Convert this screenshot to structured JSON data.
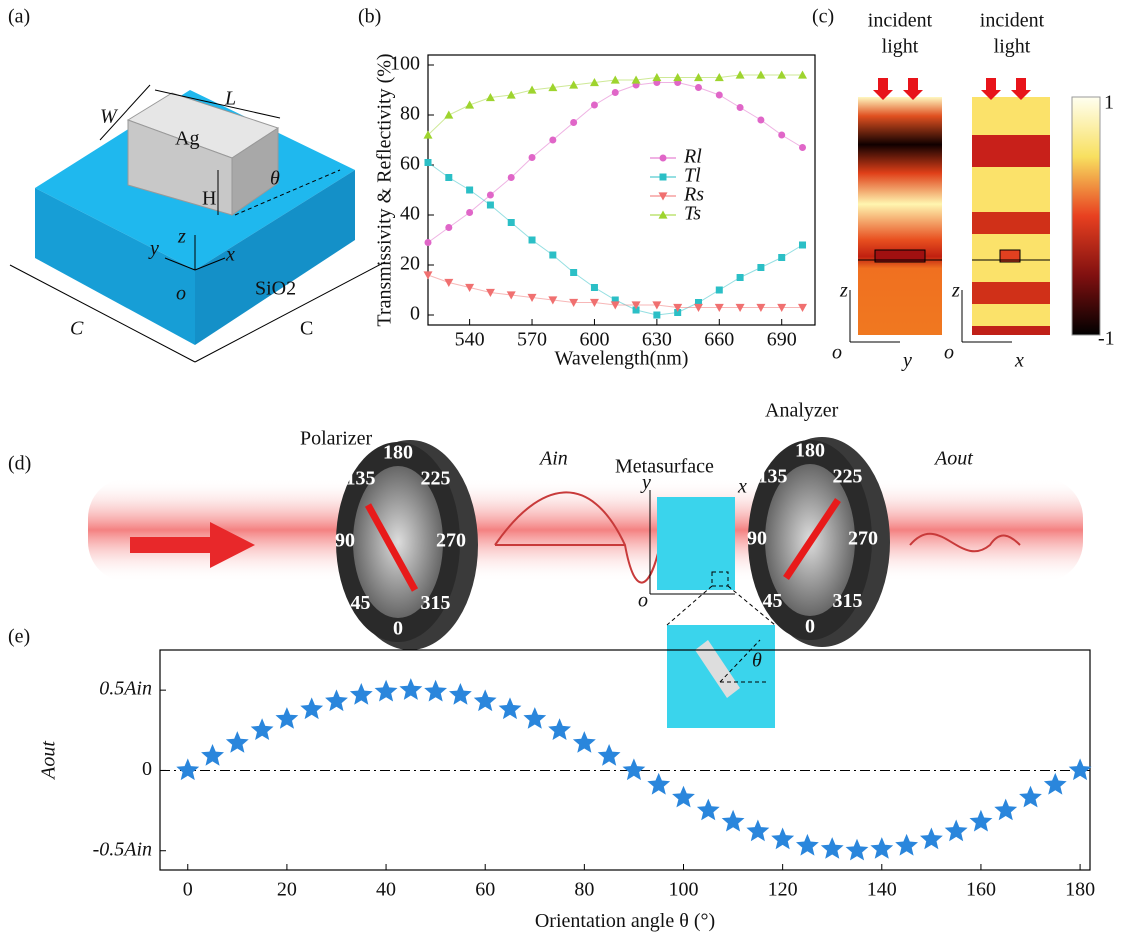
{
  "panel_labels": [
    "(a)",
    "(b)",
    "(c)",
    "(d)",
    "(e)"
  ],
  "panel_a": {
    "W": "W",
    "L": "L",
    "material": "Ag",
    "H": "H",
    "theta": "θ",
    "z": "z",
    "y": "y",
    "x": "x",
    "o": "o",
    "substrate": "SiO2",
    "C_left": "C",
    "C_right": "C"
  },
  "panel_c": {
    "incident": [
      "incident",
      "light"
    ],
    "colorbar": [
      "1",
      "-1"
    ],
    "axes_left": [
      "z",
      "o",
      "y"
    ],
    "axes_right": [
      "z",
      "o",
      "x"
    ]
  },
  "panel_d": {
    "polarizer": "Polarizer",
    "analyzer": "Analyzer",
    "metasurface": "Metasurface",
    "a_in": "Ain",
    "a_out": "Aout",
    "ms_axes": [
      "y",
      "x",
      "o"
    ],
    "inset_theta": "θ",
    "dial_labels": [
      "0",
      "45",
      "90",
      "135",
      "180",
      "225",
      "270",
      "315"
    ]
  },
  "chart_data": [
    {
      "type": "line",
      "ylabel": "Transmissivity & Reflectivity (%)",
      "xlabel": "Wavelength(nm)",
      "x": [
        520,
        530,
        540,
        550,
        560,
        570,
        580,
        590,
        600,
        610,
        620,
        630,
        640,
        650,
        660,
        670,
        680,
        690,
        700
      ],
      "xlim": [
        520,
        706
      ],
      "xticks": [
        540,
        570,
        600,
        630,
        660,
        690
      ],
      "ylim": [
        -4,
        104
      ],
      "yticks": [
        0,
        20,
        40,
        60,
        80,
        100
      ],
      "legend": "right",
      "series": [
        {
          "name": "Rl",
          "color": "#e066c8",
          "marker": "circle",
          "values": [
            29,
            35,
            41,
            48,
            55,
            63,
            70,
            77,
            84,
            89,
            92,
            93,
            93,
            91,
            88,
            83,
            78,
            72,
            67
          ]
        },
        {
          "name": "Tl",
          "color": "#2bbfc6",
          "marker": "square",
          "values": [
            61,
            55,
            50,
            44,
            37,
            30,
            24,
            17,
            11,
            6,
            2,
            0,
            1,
            5,
            10,
            15,
            19,
            23,
            28
          ]
        },
        {
          "name": "Rs",
          "color": "#f07070",
          "marker": "triangle-down",
          "values": [
            16,
            13,
            11,
            9,
            8,
            7,
            6,
            5,
            5,
            4,
            4,
            4,
            3,
            3,
            3,
            3,
            3,
            3,
            3
          ]
        },
        {
          "name": "Ts",
          "color": "#9ed42e",
          "marker": "triangle-up",
          "values": [
            72,
            80,
            84,
            87,
            88,
            90,
            91,
            92,
            93,
            94,
            94,
            95,
            95,
            95,
            95,
            96,
            96,
            96,
            96
          ]
        }
      ]
    },
    {
      "type": "scatter",
      "xlabel": "Orientation angle θ (°)",
      "ylabel": "Aout",
      "color": "#2a86dc",
      "hline": 0,
      "x": [
        0,
        5,
        10,
        15,
        20,
        25,
        30,
        35,
        40,
        45,
        50,
        55,
        60,
        65,
        70,
        75,
        80,
        85,
        90,
        95,
        100,
        105,
        110,
        115,
        120,
        125,
        130,
        135,
        140,
        145,
        150,
        155,
        160,
        165,
        170,
        175,
        180
      ],
      "values": [
        0,
        0.09,
        0.17,
        0.25,
        0.32,
        0.38,
        0.43,
        0.47,
        0.49,
        0.5,
        0.49,
        0.47,
        0.43,
        0.38,
        0.32,
        0.25,
        0.17,
        0.09,
        0,
        -0.09,
        -0.17,
        -0.25,
        -0.32,
        -0.38,
        -0.43,
        -0.47,
        -0.49,
        -0.5,
        -0.49,
        -0.47,
        -0.43,
        -0.38,
        -0.32,
        -0.25,
        -0.17,
        -0.09,
        0
      ],
      "xlim": [
        -5.6,
        182
      ],
      "xticks": [
        0,
        20,
        40,
        60,
        80,
        100,
        120,
        140,
        160,
        180
      ],
      "ylim": [
        -0.62,
        0.75
      ],
      "yticks": [
        {
          "value": -0.5,
          "label": "-0.5Ain"
        },
        0,
        {
          "value": 0.5,
          "label": "0.5Ain"
        }
      ]
    }
  ]
}
